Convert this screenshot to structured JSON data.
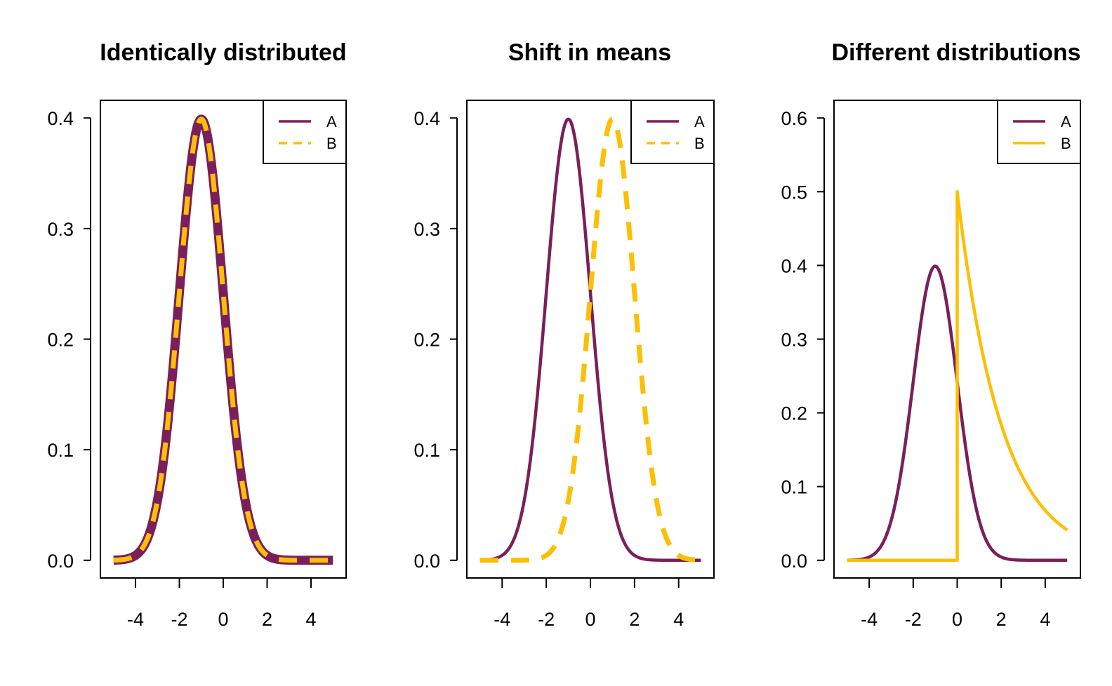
{
  "colors": {
    "A": "#7a1f5a",
    "B": "#fbbf06"
  },
  "chart_data": [
    {
      "type": "line",
      "title": "Identically distributed",
      "xlabel": "",
      "ylabel": "",
      "xlim": [
        -5,
        5
      ],
      "ylim": [
        0,
        0.4
      ],
      "xticks": [
        "-4",
        "-2",
        "0",
        "2",
        "4"
      ],
      "yticks": [
        "0.0",
        "0.1",
        "0.2",
        "0.3",
        "0.4"
      ],
      "legend": {
        "position": "top-right",
        "entries": [
          "A",
          "B"
        ]
      },
      "series": [
        {
          "name": "A",
          "dist": "normal",
          "mean": -1,
          "sd": 1,
          "x_range": [
            -5,
            5
          ],
          "style": "solid",
          "weight": "heavy"
        },
        {
          "name": "B",
          "dist": "normal",
          "mean": -1,
          "sd": 1,
          "x_range": [
            -5,
            5
          ],
          "style": "dashed",
          "weight": "heavy"
        }
      ]
    },
    {
      "type": "line",
      "title": "Shift in means",
      "xlabel": "",
      "ylabel": "",
      "xlim": [
        -5,
        5
      ],
      "ylim": [
        0,
        0.4
      ],
      "xticks": [
        "-4",
        "-2",
        "0",
        "2",
        "4"
      ],
      "yticks": [
        "0.0",
        "0.1",
        "0.2",
        "0.3",
        "0.4"
      ],
      "legend": {
        "position": "top-right",
        "entries": [
          "A",
          "B"
        ]
      },
      "series": [
        {
          "name": "A",
          "dist": "normal",
          "mean": -1,
          "sd": 1,
          "x_range": [
            -5,
            5
          ],
          "style": "solid",
          "weight": "normal"
        },
        {
          "name": "B",
          "dist": "normal",
          "mean": 1,
          "sd": 1,
          "x_range": [
            -5,
            5
          ],
          "style": "dashed",
          "weight": "heavy"
        }
      ]
    },
    {
      "type": "line",
      "title": "Different distributions",
      "xlabel": "",
      "ylabel": "",
      "xlim": [
        -5,
        5
      ],
      "ylim": [
        0,
        0.6
      ],
      "xticks": [
        "-4",
        "-2",
        "0",
        "2",
        "4"
      ],
      "yticks": [
        "0.0",
        "0.1",
        "0.2",
        "0.3",
        "0.4",
        "0.5",
        "0.6"
      ],
      "legend": {
        "position": "top-right",
        "entries": [
          "A",
          "B"
        ]
      },
      "series": [
        {
          "name": "A",
          "dist": "normal",
          "mean": -1,
          "sd": 1,
          "x_range": [
            -5,
            5
          ],
          "style": "solid",
          "weight": "normal"
        },
        {
          "name": "B",
          "dist": "exponential",
          "rate": 0.5,
          "x_range": [
            -5,
            5
          ],
          "style": "solid",
          "weight": "normal"
        }
      ]
    }
  ]
}
